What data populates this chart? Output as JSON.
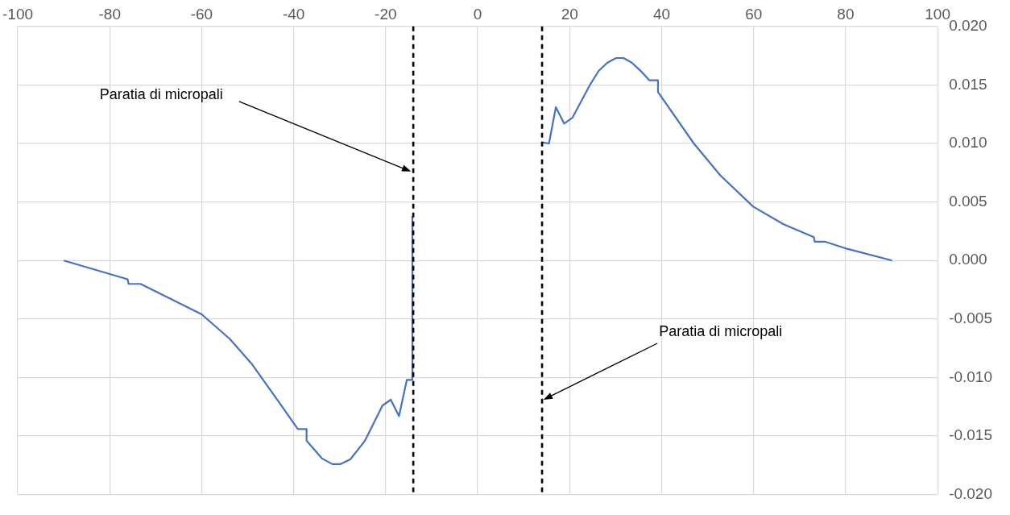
{
  "chart_data": {
    "type": "line",
    "marker": "none",
    "grid": true,
    "legend": false,
    "xlim": [
      -100,
      100
    ],
    "xticks": [
      -100,
      -80,
      -60,
      -40,
      -20,
      0,
      20,
      40,
      60,
      80,
      100
    ],
    "ylim": [
      -0.02,
      0.02
    ],
    "yticks": [
      {
        "value": -0.02,
        "label": "-0.020"
      },
      {
        "value": -0.015,
        "label": "-0.015"
      },
      {
        "value": -0.01,
        "label": "-0.010"
      },
      {
        "value": -0.005,
        "label": "-0.005"
      },
      {
        "value": 0,
        "label": "0.000"
      },
      {
        "value": 0.005,
        "label": "0.005"
      },
      {
        "value": 0.01,
        "label": "0.010"
      },
      {
        "value": 0.015,
        "label": "0.015"
      },
      {
        "value": 0.02,
        "label": "0.020"
      }
    ],
    "series": [
      {
        "color": "#4472c4",
        "x": [
          -90,
          -76.1,
          -75.9,
          -73.3,
          -60,
          -53.9,
          -49.2,
          -43.4,
          -39.1,
          -37.2,
          -37.2,
          -33.9,
          -31.6,
          -29.8,
          -27.7,
          -24.5,
          -20.7,
          -18.9,
          -17.1,
          -15.4,
          -14.2,
          -14.2
        ],
        "values": [
          0,
          -0.0016,
          -0.002,
          -0.002,
          -0.0046,
          -0.0067,
          -0.0088,
          -0.012,
          -0.0144,
          -0.0144,
          -0.0154,
          -0.0169,
          -0.0174,
          -0.0174,
          -0.017,
          -0.0154,
          -0.0124,
          -0.0119,
          -0.0133,
          -0.0102,
          -0.0102,
          0.0038
        ]
      },
      {
        "color": "#4472c4",
        "x": [
          13.9,
          15.5,
          17,
          18.8,
          20.6,
          24.4,
          26.3,
          28.2,
          30.1,
          31.7,
          33.5,
          35.7,
          37.3,
          39.2,
          39.2,
          47,
          52.7,
          59.9,
          66.5,
          73.1,
          73.3,
          75.6,
          80.3,
          90.1
        ],
        "values": [
          0.0101,
          0.01,
          0.0131,
          0.0117,
          0.0122,
          0.015,
          0.0162,
          0.0169,
          0.0173,
          0.0173,
          0.0169,
          0.0161,
          0.0154,
          0.0154,
          0.0144,
          0.01,
          0.0073,
          0.0046,
          0.0031,
          0.002,
          0.0016,
          0.0016,
          0.001,
          0
        ]
      }
    ],
    "ref_lines": [
      {
        "axis": "x",
        "value": -14,
        "color": "#000000",
        "line_style": "dashed"
      },
      {
        "axis": "x",
        "value": 14,
        "color": "#000000",
        "line_style": "dashed"
      }
    ],
    "annotations": [
      {
        "text": "Paratia di micropali",
        "x": -14.5,
        "y": 0.0076
      },
      {
        "text": "Paratia di micropali",
        "x": 14.3,
        "y": -0.0119
      }
    ]
  }
}
